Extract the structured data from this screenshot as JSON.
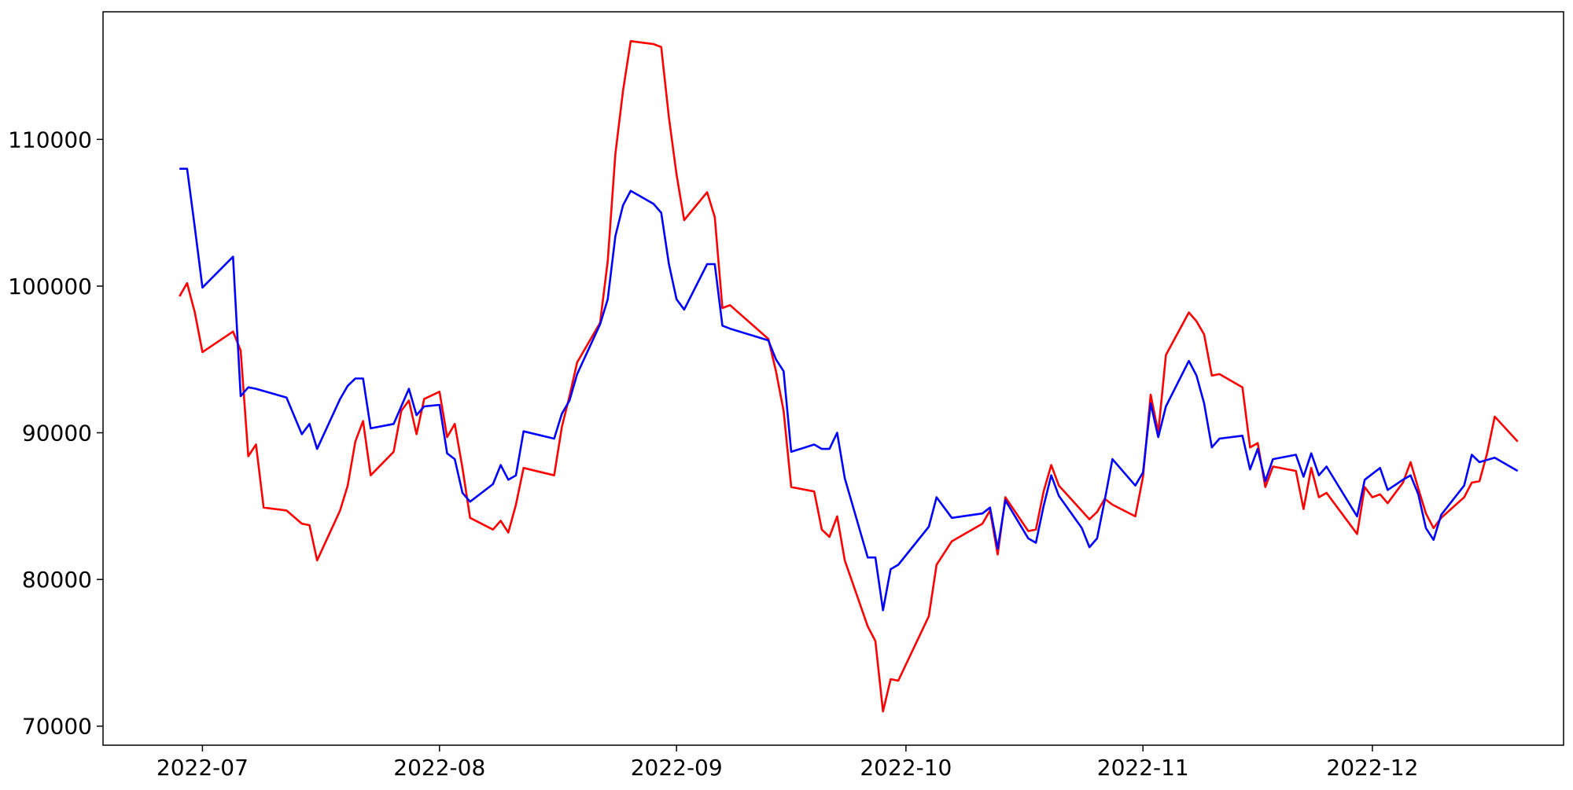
{
  "chart_data": {
    "type": "line",
    "title": "",
    "xlabel": "",
    "ylabel": "",
    "xlim": [
      "2022-06-18",
      "2022-12-26"
    ],
    "ylim": [
      68700,
      118700
    ],
    "grid": false,
    "x_ticks": [
      {
        "date": "2022-07-01",
        "label": "2022-07"
      },
      {
        "date": "2022-08-01",
        "label": "2022-08"
      },
      {
        "date": "2022-09-01",
        "label": "2022-09"
      },
      {
        "date": "2022-10-01",
        "label": "2022-10"
      },
      {
        "date": "2022-11-01",
        "label": "2022-11"
      },
      {
        "date": "2022-12-01",
        "label": "2022-12"
      }
    ],
    "y_ticks": [
      {
        "value": 70000,
        "label": "70000"
      },
      {
        "value": 80000,
        "label": "80000"
      },
      {
        "value": 90000,
        "label": "90000"
      },
      {
        "value": 100000,
        "label": "100000"
      },
      {
        "value": 110000,
        "label": "110000"
      }
    ],
    "series": [
      {
        "color": "#ff0000",
        "points": [
          [
            "2022-06-28",
            99300
          ],
          [
            "2022-06-29",
            100200
          ],
          [
            "2022-06-30",
            98200
          ],
          [
            "2022-07-01",
            95500
          ],
          [
            "2022-07-05",
            96900
          ],
          [
            "2022-07-06",
            95600
          ],
          [
            "2022-07-07",
            88400
          ],
          [
            "2022-07-08",
            89200
          ],
          [
            "2022-07-09",
            84900
          ],
          [
            "2022-07-12",
            84700
          ],
          [
            "2022-07-14",
            83800
          ],
          [
            "2022-07-15",
            83700
          ],
          [
            "2022-07-16",
            81300
          ],
          [
            "2022-07-19",
            84700
          ],
          [
            "2022-07-20",
            86400
          ],
          [
            "2022-07-21",
            89400
          ],
          [
            "2022-07-22",
            90800
          ],
          [
            "2022-07-23",
            87100
          ],
          [
            "2022-07-26",
            88700
          ],
          [
            "2022-07-27",
            91500
          ],
          [
            "2022-07-28",
            92200
          ],
          [
            "2022-07-29",
            89900
          ],
          [
            "2022-07-30",
            92300
          ],
          [
            "2022-08-01",
            92800
          ],
          [
            "2022-08-02",
            89700
          ],
          [
            "2022-08-03",
            90600
          ],
          [
            "2022-08-04",
            87600
          ],
          [
            "2022-08-05",
            84200
          ],
          [
            "2022-08-08",
            83400
          ],
          [
            "2022-08-09",
            84000
          ],
          [
            "2022-08-10",
            83200
          ],
          [
            "2022-08-11",
            85100
          ],
          [
            "2022-08-12",
            87600
          ],
          [
            "2022-08-16",
            87100
          ],
          [
            "2022-08-17",
            90400
          ],
          [
            "2022-08-18",
            92500
          ],
          [
            "2022-08-19",
            94800
          ],
          [
            "2022-08-22",
            97500
          ],
          [
            "2022-08-23",
            101700
          ],
          [
            "2022-08-24",
            109000
          ],
          [
            "2022-08-25",
            113300
          ],
          [
            "2022-08-26",
            116700
          ],
          [
            "2022-08-29",
            116500
          ],
          [
            "2022-08-30",
            116300
          ],
          [
            "2022-08-31",
            111500
          ],
          [
            "2022-09-01",
            107600
          ],
          [
            "2022-09-02",
            104500
          ],
          [
            "2022-09-05",
            106400
          ],
          [
            "2022-09-06",
            104700
          ],
          [
            "2022-09-07",
            98500
          ],
          [
            "2022-09-08",
            98700
          ],
          [
            "2022-09-13",
            96400
          ],
          [
            "2022-09-14",
            94200
          ],
          [
            "2022-09-15",
            91500
          ],
          [
            "2022-09-16",
            86300
          ],
          [
            "2022-09-19",
            86000
          ],
          [
            "2022-09-20",
            83400
          ],
          [
            "2022-09-21",
            82900
          ],
          [
            "2022-09-22",
            84300
          ],
          [
            "2022-09-23",
            81300
          ],
          [
            "2022-09-26",
            76800
          ],
          [
            "2022-09-27",
            75800
          ],
          [
            "2022-09-28",
            71000
          ],
          [
            "2022-09-29",
            73200
          ],
          [
            "2022-09-30",
            73100
          ],
          [
            "2022-10-04",
            77500
          ],
          [
            "2022-10-05",
            81000
          ],
          [
            "2022-10-06",
            81800
          ],
          [
            "2022-10-07",
            82600
          ],
          [
            "2022-10-11",
            83800
          ],
          [
            "2022-10-12",
            84700
          ],
          [
            "2022-10-13",
            81700
          ],
          [
            "2022-10-14",
            85600
          ],
          [
            "2022-10-17",
            83300
          ],
          [
            "2022-10-18",
            83400
          ],
          [
            "2022-10-19",
            86000
          ],
          [
            "2022-10-20",
            87800
          ],
          [
            "2022-10-21",
            86400
          ],
          [
            "2022-10-25",
            84100
          ],
          [
            "2022-10-26",
            84600
          ],
          [
            "2022-10-27",
            85500
          ],
          [
            "2022-10-28",
            85100
          ],
          [
            "2022-10-31",
            84300
          ],
          [
            "2022-11-01",
            87000
          ],
          [
            "2022-11-02",
            92600
          ],
          [
            "2022-11-03",
            90000
          ],
          [
            "2022-11-04",
            95300
          ],
          [
            "2022-11-07",
            98200
          ],
          [
            "2022-11-08",
            97600
          ],
          [
            "2022-11-09",
            96700
          ],
          [
            "2022-11-10",
            93900
          ],
          [
            "2022-11-11",
            94000
          ],
          [
            "2022-11-14",
            93100
          ],
          [
            "2022-11-15",
            89000
          ],
          [
            "2022-11-16",
            89300
          ],
          [
            "2022-11-17",
            86300
          ],
          [
            "2022-11-18",
            87700
          ],
          [
            "2022-11-21",
            87400
          ],
          [
            "2022-11-22",
            84800
          ],
          [
            "2022-11-23",
            87600
          ],
          [
            "2022-11-24",
            85600
          ],
          [
            "2022-11-25",
            85900
          ],
          [
            "2022-11-29",
            83100
          ],
          [
            "2022-11-30",
            86300
          ],
          [
            "2022-12-01",
            85600
          ],
          [
            "2022-12-02",
            85800
          ],
          [
            "2022-12-03",
            85200
          ],
          [
            "2022-12-05",
            86600
          ],
          [
            "2022-12-06",
            88000
          ],
          [
            "2022-12-07",
            86200
          ],
          [
            "2022-12-08",
            84500
          ],
          [
            "2022-12-09",
            83500
          ],
          [
            "2022-12-10",
            84200
          ],
          [
            "2022-12-13",
            85600
          ],
          [
            "2022-12-14",
            86600
          ],
          [
            "2022-12-15",
            86700
          ],
          [
            "2022-12-16",
            88600
          ],
          [
            "2022-12-17",
            91100
          ],
          [
            "2022-12-20",
            89400
          ]
        ]
      },
      {
        "color": "#0000ff",
        "points": [
          [
            "2022-06-28",
            108000
          ],
          [
            "2022-06-29",
            108000
          ],
          [
            "2022-06-30",
            104000
          ],
          [
            "2022-07-01",
            99900
          ],
          [
            "2022-07-05",
            102000
          ],
          [
            "2022-07-06",
            92500
          ],
          [
            "2022-07-07",
            93100
          ],
          [
            "2022-07-08",
            93000
          ],
          [
            "2022-07-12",
            92400
          ],
          [
            "2022-07-14",
            89900
          ],
          [
            "2022-07-15",
            90600
          ],
          [
            "2022-07-16",
            88900
          ],
          [
            "2022-07-19",
            92300
          ],
          [
            "2022-07-20",
            93200
          ],
          [
            "2022-07-21",
            93700
          ],
          [
            "2022-07-22",
            93700
          ],
          [
            "2022-07-23",
            90300
          ],
          [
            "2022-07-26",
            90600
          ],
          [
            "2022-07-27",
            91800
          ],
          [
            "2022-07-28",
            93000
          ],
          [
            "2022-07-29",
            91200
          ],
          [
            "2022-07-30",
            91800
          ],
          [
            "2022-08-01",
            91900
          ],
          [
            "2022-08-02",
            88600
          ],
          [
            "2022-08-03",
            88200
          ],
          [
            "2022-08-04",
            85900
          ],
          [
            "2022-08-05",
            85300
          ],
          [
            "2022-08-08",
            86500
          ],
          [
            "2022-08-09",
            87800
          ],
          [
            "2022-08-10",
            86800
          ],
          [
            "2022-08-11",
            87100
          ],
          [
            "2022-08-12",
            90100
          ],
          [
            "2022-08-16",
            89600
          ],
          [
            "2022-08-17",
            91300
          ],
          [
            "2022-08-18",
            92200
          ],
          [
            "2022-08-19",
            94000
          ],
          [
            "2022-08-22",
            97400
          ],
          [
            "2022-08-23",
            99100
          ],
          [
            "2022-08-24",
            103400
          ],
          [
            "2022-08-25",
            105500
          ],
          [
            "2022-08-26",
            106500
          ],
          [
            "2022-08-29",
            105600
          ],
          [
            "2022-08-30",
            105000
          ],
          [
            "2022-08-31",
            101500
          ],
          [
            "2022-09-01",
            99100
          ],
          [
            "2022-09-02",
            98400
          ],
          [
            "2022-09-05",
            101500
          ],
          [
            "2022-09-06",
            101500
          ],
          [
            "2022-09-07",
            97300
          ],
          [
            "2022-09-08",
            97100
          ],
          [
            "2022-09-13",
            96300
          ],
          [
            "2022-09-14",
            95000
          ],
          [
            "2022-09-15",
            94200
          ],
          [
            "2022-09-16",
            88700
          ],
          [
            "2022-09-19",
            89200
          ],
          [
            "2022-09-20",
            88900
          ],
          [
            "2022-09-21",
            88900
          ],
          [
            "2022-09-22",
            90000
          ],
          [
            "2022-09-23",
            86900
          ],
          [
            "2022-09-26",
            81500
          ],
          [
            "2022-09-27",
            81500
          ],
          [
            "2022-09-28",
            77900
          ],
          [
            "2022-09-29",
            80700
          ],
          [
            "2022-09-30",
            81000
          ],
          [
            "2022-10-04",
            83600
          ],
          [
            "2022-10-05",
            85600
          ],
          [
            "2022-10-06",
            84900
          ],
          [
            "2022-10-07",
            84200
          ],
          [
            "2022-10-11",
            84500
          ],
          [
            "2022-10-12",
            84900
          ],
          [
            "2022-10-13",
            82100
          ],
          [
            "2022-10-14",
            85400
          ],
          [
            "2022-10-17",
            82800
          ],
          [
            "2022-10-18",
            82500
          ],
          [
            "2022-10-19",
            85000
          ],
          [
            "2022-10-20",
            87100
          ],
          [
            "2022-10-21",
            85700
          ],
          [
            "2022-10-24",
            83500
          ],
          [
            "2022-10-25",
            82200
          ],
          [
            "2022-10-26",
            82800
          ],
          [
            "2022-10-27",
            85400
          ],
          [
            "2022-10-28",
            88200
          ],
          [
            "2022-10-31",
            86400
          ],
          [
            "2022-11-01",
            87300
          ],
          [
            "2022-11-02",
            92000
          ],
          [
            "2022-11-03",
            89700
          ],
          [
            "2022-11-04",
            91800
          ],
          [
            "2022-11-07",
            94900
          ],
          [
            "2022-11-08",
            93900
          ],
          [
            "2022-11-09",
            92000
          ],
          [
            "2022-11-10",
            89000
          ],
          [
            "2022-11-11",
            89600
          ],
          [
            "2022-11-14",
            89800
          ],
          [
            "2022-11-15",
            87500
          ],
          [
            "2022-11-16",
            88900
          ],
          [
            "2022-11-17",
            86700
          ],
          [
            "2022-11-18",
            88200
          ],
          [
            "2022-11-21",
            88500
          ],
          [
            "2022-11-22",
            87000
          ],
          [
            "2022-11-23",
            88600
          ],
          [
            "2022-11-24",
            87100
          ],
          [
            "2022-11-25",
            87700
          ],
          [
            "2022-11-29",
            84300
          ],
          [
            "2022-11-30",
            86800
          ],
          [
            "2022-12-01",
            87200
          ],
          [
            "2022-12-02",
            87600
          ],
          [
            "2022-12-03",
            86100
          ],
          [
            "2022-12-05",
            86800
          ],
          [
            "2022-12-06",
            87100
          ],
          [
            "2022-12-07",
            85800
          ],
          [
            "2022-12-08",
            83500
          ],
          [
            "2022-12-09",
            82700
          ],
          [
            "2022-12-10",
            84400
          ],
          [
            "2022-12-13",
            86400
          ],
          [
            "2022-12-14",
            88500
          ],
          [
            "2022-12-15",
            88000
          ],
          [
            "2022-12-17",
            88300
          ],
          [
            "2022-12-20",
            87400
          ]
        ]
      }
    ]
  }
}
